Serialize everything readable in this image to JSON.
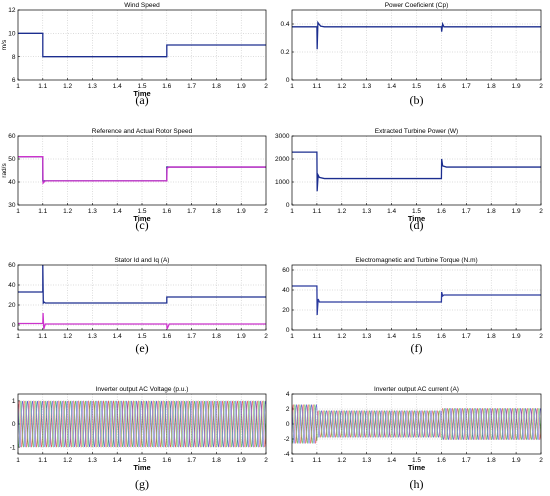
{
  "chart_data": [
    {
      "type": "line",
      "caption": "(a)",
      "title": "Wind Speed",
      "xlabel": "Time",
      "ylabel": "m/s",
      "xlim": [
        1,
        2
      ],
      "ylim": [
        6,
        12
      ],
      "x_ticks": [
        "1",
        "1.1",
        "1.2",
        "1.3",
        "1.4",
        "1.5",
        "1.6",
        "1.7",
        "1.8",
        "1.9",
        "2"
      ],
      "y_ticks": [
        "6",
        "8",
        "10",
        "12"
      ],
      "grid": true,
      "series": [
        {
          "color": "#1c2e8f",
          "x": [
            1,
            1.1,
            1.1,
            1.6,
            1.6,
            2
          ],
          "y": [
            10,
            10,
            8,
            8,
            9,
            9
          ]
        }
      ]
    },
    {
      "type": "line",
      "caption": "(b)",
      "title": "Power Coeficient (Cp)",
      "xlabel": "",
      "ylabel": "",
      "xlim": [
        1,
        2
      ],
      "ylim": [
        0,
        0.5
      ],
      "x_ticks": [
        "1",
        "1.1",
        "1.2",
        "1.3",
        "1.4",
        "1.5",
        "1.6",
        "1.7",
        "1.8",
        "1.9",
        "2"
      ],
      "y_ticks": [
        "0",
        "0.2",
        "0.4"
      ],
      "grid": true,
      "series": [
        {
          "color": "#1c2e8f",
          "x": [
            1,
            1.1,
            1.101,
            1.104,
            1.108,
            1.115,
            1.13,
            1.6,
            1.601,
            1.605,
            1.61,
            2
          ],
          "y": [
            0.38,
            0.38,
            0.22,
            0.41,
            0.4,
            0.385,
            0.38,
            0.38,
            0.345,
            0.4,
            0.38,
            0.38
          ]
        }
      ]
    },
    {
      "type": "line",
      "caption": "(c)",
      "title": "Reference and Actual Rotor Speed",
      "xlabel": "Time",
      "ylabel": "rad/s",
      "xlim": [
        1,
        2
      ],
      "ylim": [
        30,
        60
      ],
      "x_ticks": [
        "1",
        "1.1",
        "1.2",
        "1.3",
        "1.4",
        "1.5",
        "1.6",
        "1.7",
        "1.8",
        "1.9",
        "2"
      ],
      "y_ticks": [
        "30",
        "40",
        "50",
        "60"
      ],
      "grid": true,
      "series": [
        {
          "color": "#1c2e8f",
          "x": [
            1,
            1.1,
            1.1,
            1.6,
            1.6,
            2
          ],
          "y": [
            51,
            51,
            40.5,
            40.5,
            46.5,
            46.5
          ]
        },
        {
          "color": "#cc33cc",
          "x": [
            1,
            1.1,
            1.101,
            1.11,
            1.12,
            1.6,
            1.601,
            1.61,
            2
          ],
          "y": [
            51,
            51,
            39.5,
            40.5,
            40.5,
            40.5,
            46,
            46.5,
            46.5
          ]
        }
      ]
    },
    {
      "type": "line",
      "caption": "(d)",
      "title": "Extracted Turbine Power (W)",
      "xlabel": "Time",
      "ylabel": "",
      "xlim": [
        1,
        2
      ],
      "ylim": [
        0,
        3000
      ],
      "x_ticks": [
        "1",
        "1.1",
        "1.2",
        "1.3",
        "1.4",
        "1.5",
        "1.6",
        "1.7",
        "1.8",
        "1.9",
        "2"
      ],
      "y_ticks": [
        "0",
        "1000",
        "2000",
        "3000"
      ],
      "grid": true,
      "series": [
        {
          "color": "#1c2e8f",
          "x": [
            1,
            1.1,
            1.101,
            1.105,
            1.11,
            1.13,
            1.6,
            1.601,
            1.605,
            1.62,
            2
          ],
          "y": [
            2300,
            2300,
            600,
            1300,
            1200,
            1150,
            1150,
            2000,
            1700,
            1650,
            1650
          ]
        }
      ]
    },
    {
      "type": "line",
      "caption": "(e)",
      "title": "Stator Id and Iq (A)",
      "xlabel": "",
      "ylabel": "",
      "xlim": [
        1,
        2
      ],
      "ylim": [
        -5,
        60
      ],
      "x_ticks": [
        "1",
        "1.1",
        "1.2",
        "1.3",
        "1.4",
        "1.5",
        "1.6",
        "1.7",
        "1.8",
        "1.9",
        "2"
      ],
      "y_ticks": [
        "0",
        "20",
        "40",
        "60"
      ],
      "grid": true,
      "series": [
        {
          "color": "#1c2e8f",
          "x": [
            1,
            1.1,
            1.1,
            1.102,
            1.105,
            1.11,
            1.6,
            1.6,
            1.61,
            2
          ],
          "y": [
            33,
            33,
            60,
            22,
            23,
            22,
            22,
            28,
            28,
            28
          ]
        },
        {
          "color": "#cc33cc",
          "x": [
            1,
            1.1,
            1.101,
            1.104,
            1.11,
            1.6,
            1.601,
            1.61,
            2
          ],
          "y": [
            1.5,
            1.5,
            12,
            -4,
            1,
            1,
            -4,
            1,
            1
          ]
        }
      ]
    },
    {
      "type": "line",
      "caption": "(f)",
      "title": "Electromagnetic and Turbine Torque (N.m)",
      "xlabel": "",
      "ylabel": "",
      "xlim": [
        1,
        2
      ],
      "ylim": [
        0,
        65
      ],
      "x_ticks": [
        "1",
        "1.1",
        "1.2",
        "1.3",
        "1.4",
        "1.5",
        "1.6",
        "1.7",
        "1.8",
        "1.9",
        "2"
      ],
      "y_ticks": [
        "0",
        "20",
        "40",
        "60"
      ],
      "grid": true,
      "series": [
        {
          "color": "#2b3a9e",
          "x": [
            1,
            1.1,
            1.101,
            1.105,
            1.11,
            1.6,
            1.601,
            1.605,
            1.61,
            2
          ],
          "y": [
            44,
            44,
            15,
            31,
            28,
            28,
            38,
            34,
            35,
            35
          ]
        }
      ]
    },
    {
      "type": "line",
      "caption": "(g)",
      "title": "Inverter output AC Voltage (p.u.)",
      "xlabel": "Time",
      "ylabel": "",
      "xlim": [
        1,
        2
      ],
      "ylim": [
        -1.3,
        1.3
      ],
      "x_ticks": [
        "1",
        "1.1",
        "1.2",
        "1.3",
        "1.4",
        "1.5",
        "1.6",
        "1.7",
        "1.8",
        "1.9",
        "2"
      ],
      "y_ticks": [
        "-1",
        "0",
        "1"
      ],
      "grid": true,
      "waveform": {
        "phases": 3,
        "frequency_hz": 50,
        "amplitude": [
          [
            1,
            1.0
          ],
          [
            2,
            1.0
          ]
        ]
      },
      "series": [
        {
          "color": "#d33",
          "x": [
            1,
            2
          ],
          "y": [
            1.0,
            1.0
          ]
        },
        {
          "color": "#3a3",
          "x": [
            1,
            2
          ],
          "y": [
            1.0,
            1.0
          ]
        },
        {
          "color": "#33c",
          "x": [
            1,
            2
          ],
          "y": [
            1.0,
            1.0
          ]
        }
      ]
    },
    {
      "type": "line",
      "caption": "(h)",
      "title": "Inverter output AC current (A)",
      "xlabel": "Time",
      "ylabel": "",
      "xlim": [
        1,
        2
      ],
      "ylim": [
        -4,
        4
      ],
      "x_ticks": [
        "1",
        "1.1",
        "1.2",
        "1.3",
        "1.4",
        "1.5",
        "1.6",
        "1.7",
        "1.8",
        "1.9",
        "2"
      ],
      "y_ticks": [
        "-4",
        "-2",
        "0",
        "2",
        "4"
      ],
      "grid": true,
      "waveform": {
        "phases": 3,
        "frequency_hz": 50,
        "amplitude": [
          [
            1,
            2.6
          ],
          [
            1.1,
            2.6
          ],
          [
            1.1,
            1.8
          ],
          [
            1.6,
            1.8
          ],
          [
            1.6,
            2.1
          ],
          [
            2,
            2.1
          ]
        ]
      },
      "series": [
        {
          "color": "#d33",
          "x": [
            1,
            1.1,
            1.6,
            2
          ],
          "y": [
            2.6,
            1.8,
            1.8,
            2.1
          ]
        },
        {
          "color": "#3a3",
          "x": [
            1,
            1.1,
            1.6,
            2
          ],
          "y": [
            2.6,
            1.8,
            1.8,
            2.1
          ]
        },
        {
          "color": "#33c",
          "x": [
            1,
            1.1,
            1.6,
            2
          ],
          "y": [
            2.6,
            1.8,
            1.8,
            2.1
          ]
        }
      ]
    }
  ]
}
